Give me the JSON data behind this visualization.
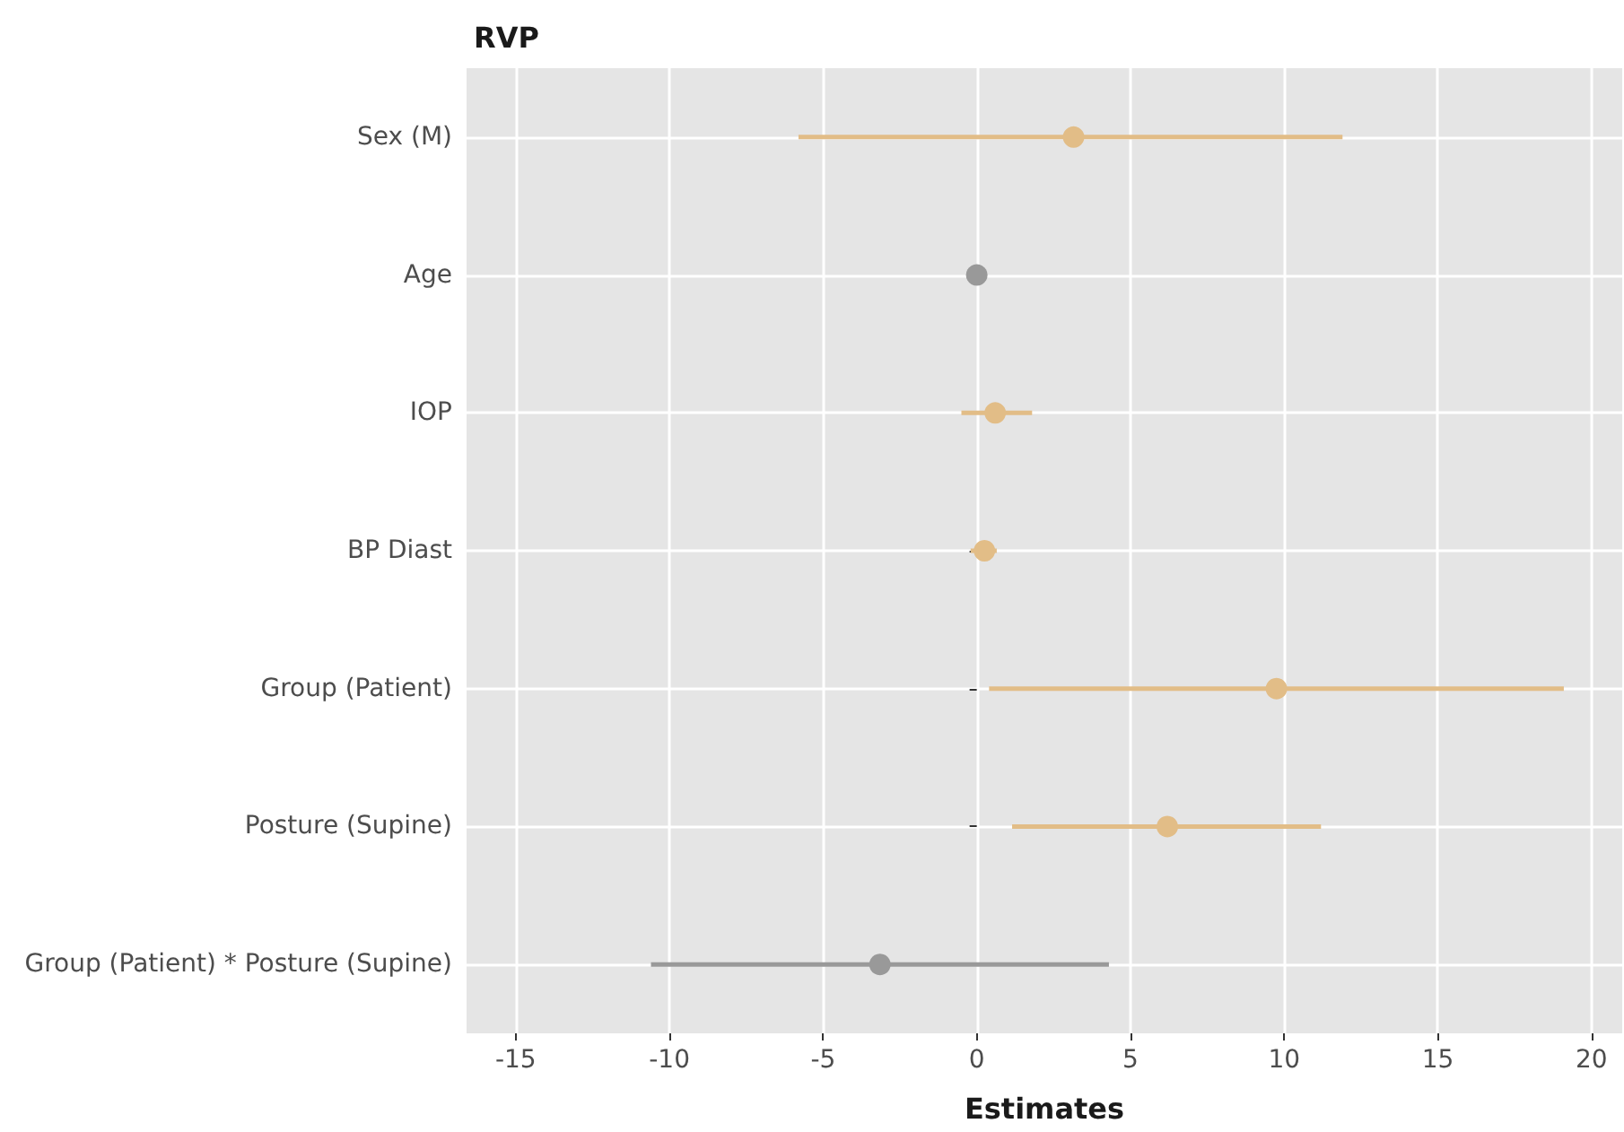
{
  "chart_data": {
    "type": "scatter",
    "title": "RVP",
    "xlabel": "Estimates",
    "orientation": "horizontal",
    "categories": [
      "Sex (M)",
      "Age",
      "IOP",
      "BP Diast",
      "Group (Patient)",
      "Posture (Supine)",
      "Group (Patient) * Posture (Supine)"
    ],
    "values": [
      3.15,
      0,
      0.6,
      0.25,
      9.75,
      6.2,
      -3.15
    ],
    "errors": [
      [
        -5.8,
        11.9
      ],
      null,
      [
        -0.5,
        1.8
      ],
      [
        -0.2,
        0.65
      ],
      [
        0.4,
        19.1
      ],
      [
        1.15,
        11.2
      ],
      [
        -10.6,
        4.3
      ]
    ],
    "colors": [
      "#e2bd87",
      "#999999",
      "#e2bd87",
      "#e2bd87",
      "#e2bd87",
      "#e2bd87",
      "#999999"
    ],
    "xlim": [
      -16.6,
      21
    ],
    "xticks": [
      -15,
      -10,
      -5,
      0,
      5,
      10,
      15,
      20
    ],
    "grid": true,
    "marker": "circle"
  }
}
